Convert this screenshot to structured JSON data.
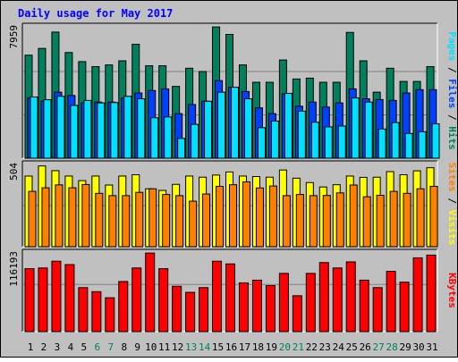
{
  "colors": {
    "background": "#c0c0c0",
    "frame": "#000000",
    "title": "#0000ff",
    "hits": "#00805c",
    "files": "#0040ff",
    "pages": "#00e0ff",
    "visits": "#ffff00",
    "sites": "#ff8000",
    "kbytes": "#ff0000",
    "weekend": "#00805c",
    "weekday": "#000000"
  },
  "chart_data": [
    {
      "type": "bar",
      "title": "Daily usage for May 2017",
      "panel": "top",
      "ylabel_parts": [
        {
          "text": "Pages",
          "color": "#00e0ff"
        },
        {
          "text": " / ",
          "color": "#000000"
        },
        {
          "text": "Files",
          "color": "#0040ff"
        },
        {
          "text": " / ",
          "color": "#000000"
        },
        {
          "text": "Hits",
          "color": "#00805c"
        }
      ],
      "ymax_label": "7959",
      "ylim": [
        0,
        7959
      ],
      "categories": [
        "1",
        "2",
        "3",
        "4",
        "5",
        "6",
        "7",
        "8",
        "9",
        "10",
        "11",
        "12",
        "13",
        "14",
        "15",
        "16",
        "17",
        "18",
        "19",
        "20",
        "21",
        "22",
        "23",
        "24",
        "25",
        "26",
        "27",
        "28",
        "29",
        "30",
        "31"
      ],
      "weekend_days": [
        "6",
        "7",
        "13",
        "14",
        "20",
        "21",
        "27",
        "28"
      ],
      "series": [
        {
          "name": "Hits",
          "values": [
            6240,
            6650,
            7640,
            6400,
            5850,
            5550,
            5650,
            5900,
            6900,
            5600,
            5600,
            4350,
            5450,
            5250,
            7950,
            7500,
            5650,
            4600,
            4600,
            5950,
            4800,
            4850,
            4600,
            4600,
            7620,
            5900,
            4000,
            5450,
            4650,
            4650,
            5550
          ]
        },
        {
          "name": "Files",
          "values": [
            3660,
            3460,
            4000,
            3800,
            3350,
            3400,
            3400,
            3650,
            3950,
            4100,
            4200,
            2700,
            3250,
            3450,
            4700,
            4300,
            4040,
            3050,
            2700,
            3900,
            3150,
            3400,
            3100,
            3350,
            4200,
            3600,
            3550,
            3500,
            3950,
            4150,
            4150
          ]
        },
        {
          "name": "Pages",
          "values": [
            3710,
            3540,
            3750,
            3200,
            3500,
            3350,
            3370,
            3750,
            3600,
            2450,
            2500,
            1200,
            2050,
            3450,
            4000,
            4300,
            3600,
            1850,
            2250,
            3930,
            2850,
            2180,
            1900,
            1950,
            3650,
            3400,
            1770,
            2160,
            1500,
            1600,
            2080
          ]
        }
      ]
    },
    {
      "type": "bar",
      "panel": "middle",
      "ylabel_parts": [
        {
          "text": "Sites",
          "color": "#ff8000"
        },
        {
          "text": " / ",
          "color": "#000000"
        },
        {
          "text": "Visits",
          "color": "#ffff00"
        }
      ],
      "ymax_label": "504",
      "ylim": [
        0,
        504
      ],
      "categories": [
        "1",
        "2",
        "3",
        "4",
        "5",
        "6",
        "7",
        "8",
        "9",
        "10",
        "11",
        "12",
        "13",
        "14",
        "15",
        "16",
        "17",
        "18",
        "19",
        "20",
        "21",
        "22",
        "23",
        "24",
        "25",
        "26",
        "27",
        "28",
        "29",
        "30",
        "31"
      ],
      "series": [
        {
          "name": "Visits",
          "values": [
            433,
            495,
            466,
            433,
            405,
            433,
            378,
            433,
            441,
            355,
            345,
            382,
            433,
            426,
            439,
            458,
            433,
            430,
            426,
            470,
            420,
            393,
            366,
            380,
            433,
            425,
            426,
            460,
            441,
            465,
            484
          ]
        },
        {
          "name": "Sites",
          "values": [
            339,
            361,
            379,
            361,
            381,
            327,
            313,
            313,
            333,
            355,
            320,
            313,
            279,
            323,
            370,
            380,
            397,
            360,
            372,
            313,
            320,
            313,
            314,
            330,
            378,
            306,
            315,
            339,
            327,
            355,
            370
          ]
        }
      ]
    },
    {
      "type": "bar",
      "panel": "bottom",
      "ylabel_parts": [
        {
          "text": "KBytes",
          "color": "#ff0000"
        }
      ],
      "ymax_label": "116193",
      "ylim": [
        0,
        116193
      ],
      "categories": [
        "1",
        "2",
        "3",
        "4",
        "5",
        "6",
        "7",
        "8",
        "9",
        "10",
        "11",
        "12",
        "13",
        "14",
        "15",
        "16",
        "17",
        "18",
        "19",
        "20",
        "21",
        "22",
        "23",
        "24",
        "25",
        "26",
        "27",
        "28",
        "29",
        "30",
        "31"
      ],
      "series": [
        {
          "name": "KBytes",
          "values": [
            93000,
            94000,
            104000,
            99000,
            65000,
            59000,
            50000,
            74000,
            94000,
            116000,
            93000,
            67000,
            58000,
            65000,
            104000,
            100000,
            72000,
            76000,
            68000,
            86000,
            53000,
            86000,
            102000,
            94000,
            103000,
            76000,
            65000,
            89000,
            73000,
            109000,
            113000
          ]
        }
      ]
    }
  ]
}
